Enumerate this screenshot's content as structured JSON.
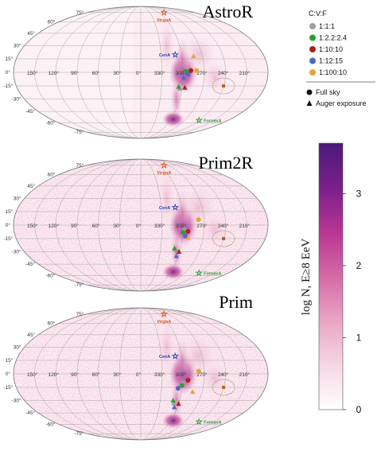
{
  "chart_data": {
    "type": "heatmap",
    "projection": "mollweide",
    "colorbar": {
      "label": "log N, E≥8 EeV",
      "ticks": [
        0,
        1,
        2,
        3
      ],
      "range": [
        0,
        3.7
      ],
      "colors": [
        "#ffffff",
        "#f6d7e3",
        "#e9a5c4",
        "#d46aa6",
        "#b83592",
        "#7a1f8a",
        "#4b1a7a"
      ]
    },
    "legend": {
      "group_title": "C:V:F",
      "ratios": [
        {
          "label": "1:1:1",
          "color": "#9e9e9e"
        },
        {
          "label": "1:2.2:2.4",
          "color": "#2e9e35"
        },
        {
          "label": "1:10:10",
          "color": "#b21d1d"
        },
        {
          "label": "1:12:15",
          "color": "#4f67c9"
        },
        {
          "label": "1:100:10",
          "color": "#e8a23a"
        }
      ],
      "markers": [
        {
          "label": "Full sky",
          "shape": "circle"
        },
        {
          "label": "Auger exposure",
          "shape": "triangle"
        }
      ]
    },
    "lon_ticks": [
      "150°",
      "120°",
      "90°",
      "60°",
      "30°",
      "0°",
      "330°",
      "300°",
      "270°",
      "240°",
      "210°"
    ],
    "lat_ticks": [
      "75°",
      "60°",
      "45°",
      "30°",
      "15°",
      "0°",
      "-15°",
      "-30°",
      "-45°",
      "-60°",
      "-75°"
    ],
    "sources": [
      {
        "name": "VirgoA",
        "lon": 283.8,
        "lat": 74.5,
        "color": "#d9531e"
      },
      {
        "name": "CenA",
        "lon": 309.5,
        "lat": 19.4,
        "color": "#2b3fb3"
      },
      {
        "name": "FornaxA",
        "lon": 240.2,
        "lat": -56.7,
        "color": "#2e9e35"
      }
    ],
    "panels": [
      {
        "title": "AstroR",
        "points": [
          {
            "ratio": "1:1:1",
            "shape": "circle",
            "lon": 292,
            "lat": 3
          },
          {
            "ratio": "1:2.2:2.4",
            "shape": "circle",
            "lon": 296,
            "lat": 1
          },
          {
            "ratio": "1:10:10",
            "shape": "circle",
            "lon": 289,
            "lat": 2
          },
          {
            "ratio": "1:12:15",
            "shape": "circle",
            "lon": 293,
            "lat": -2
          },
          {
            "ratio": "1:100:10",
            "shape": "circle",
            "lon": 281,
            "lat": 2
          },
          {
            "ratio": "1:1:1",
            "shape": "triangle",
            "lon": 303,
            "lat": -18
          },
          {
            "ratio": "1:2.2:2.4",
            "shape": "triangle",
            "lon": 305,
            "lat": -16
          },
          {
            "ratio": "1:10:10",
            "shape": "triangle",
            "lon": 296,
            "lat": -17
          },
          {
            "ratio": "1:12:15",
            "shape": "triangle",
            "lon": 299,
            "lat": -6
          },
          {
            "ratio": "1:100:10",
            "shape": "triangle",
            "lon": 283,
            "lat": 18
          }
        ]
      },
      {
        "title": "Prim2R",
        "points": [
          {
            "ratio": "1:1:1",
            "shape": "circle",
            "lon": 298,
            "lat": -5
          },
          {
            "ratio": "1:2.2:2.4",
            "shape": "circle",
            "lon": 300,
            "lat": -8
          },
          {
            "ratio": "1:10:10",
            "shape": "circle",
            "lon": 293,
            "lat": -7
          },
          {
            "ratio": "1:12:15",
            "shape": "circle",
            "lon": 296,
            "lat": -12
          },
          {
            "ratio": "1:100:10",
            "shape": "circle",
            "lon": 278,
            "lat": 6
          },
          {
            "ratio": "1:1:1",
            "shape": "triangle",
            "lon": 306,
            "lat": -28
          },
          {
            "ratio": "1:2.2:2.4",
            "shape": "triangle",
            "lon": 309,
            "lat": -26
          },
          {
            "ratio": "1:10:10",
            "shape": "triangle",
            "lon": 301,
            "lat": -30
          },
          {
            "ratio": "1:12:15",
            "shape": "triangle",
            "lon": 303,
            "lat": -35
          },
          {
            "ratio": "1:100:10",
            "shape": "triangle",
            "lon": 292,
            "lat": -14
          }
        ]
      },
      {
        "title": "Prim",
        "points": [
          {
            "ratio": "1:1:1",
            "shape": "circle",
            "lon": 299,
            "lat": -10
          },
          {
            "ratio": "1:2.2:2.4",
            "shape": "circle",
            "lon": 301,
            "lat": -13
          },
          {
            "ratio": "1:10:10",
            "shape": "circle",
            "lon": 293,
            "lat": -7
          },
          {
            "ratio": "1:12:15",
            "shape": "circle",
            "lon": 306,
            "lat": -16
          },
          {
            "ratio": "1:100:10",
            "shape": "circle",
            "lon": 278,
            "lat": 3
          },
          {
            "ratio": "1:1:1",
            "shape": "triangle",
            "lon": 308,
            "lat": -33
          },
          {
            "ratio": "1:2.2:2.4",
            "shape": "triangle",
            "lon": 310,
            "lat": -30
          },
          {
            "ratio": "1:10:10",
            "shape": "triangle",
            "lon": 300,
            "lat": -34
          },
          {
            "ratio": "1:12:15",
            "shape": "triangle",
            "lon": 305,
            "lat": -38
          },
          {
            "ratio": "1:100:10",
            "shape": "triangle",
            "lon": 284,
            "lat": -20
          }
        ]
      }
    ]
  }
}
